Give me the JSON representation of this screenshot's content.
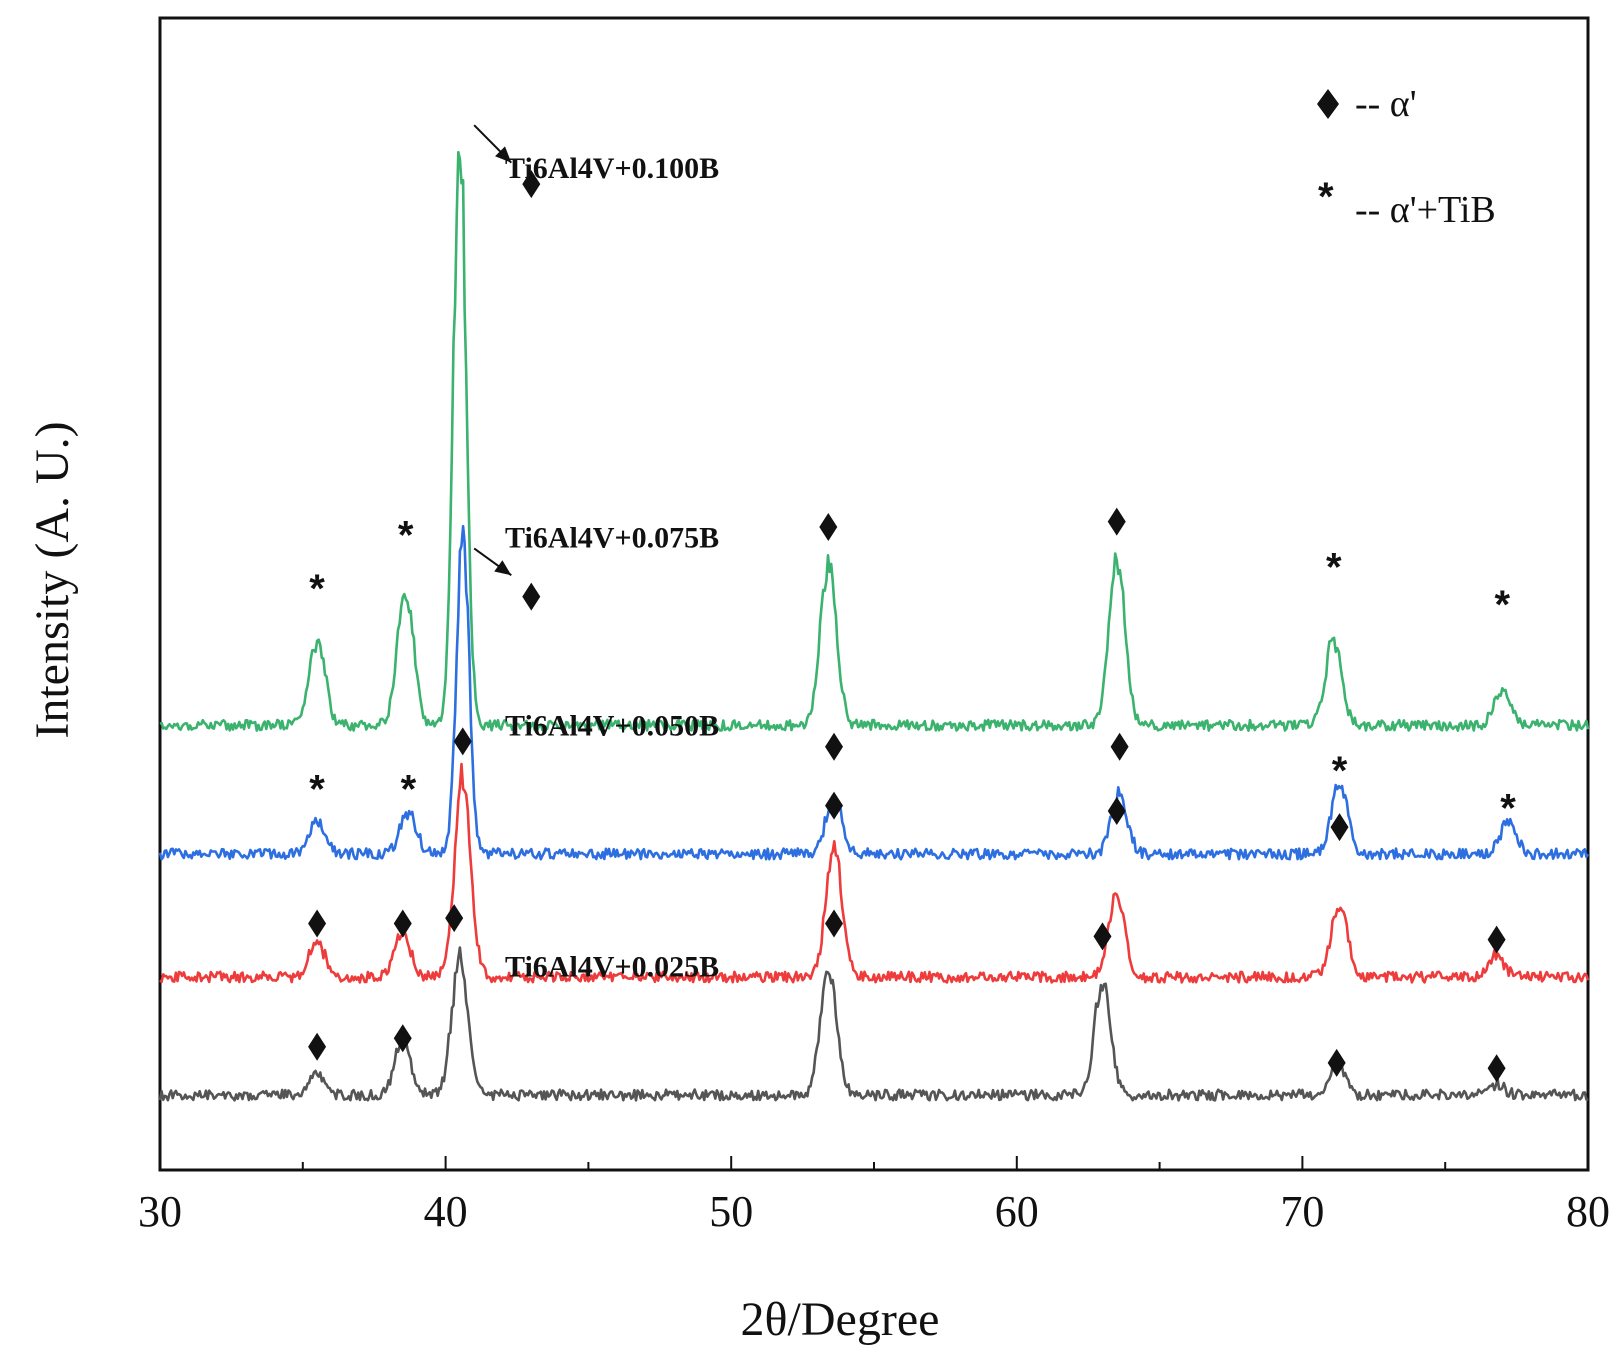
{
  "chart_data": {
    "type": "line",
    "title": "",
    "xlabel": "2θ/Degree",
    "ylabel": "Intensity (A. U.)",
    "xlim": [
      30,
      80
    ],
    "xticks": [
      30,
      40,
      50,
      60,
      70,
      80
    ],
    "yticks": [],
    "grid": false,
    "legend": {
      "placement": "top-right",
      "entries": [
        {
          "symbol": "diamond",
          "glyph": "",
          "text": "-- α'"
        },
        {
          "symbol": "star",
          "glyph": "*",
          "text": "-- α'+TiB"
        }
      ]
    },
    "series": [
      {
        "name": "Ti6Al4V+0.100B",
        "color": "#3bb26e",
        "baseline": 375,
        "peaks": [
          [
            35.5,
            80
          ],
          [
            38.6,
            130
          ],
          [
            40.5,
            560
          ],
          [
            53.4,
            150
          ],
          [
            63.5,
            155
          ],
          [
            71.1,
            80
          ],
          [
            77.0,
            35
          ]
        ],
        "markers": [
          {
            "x": 35.5,
            "y": 505,
            "symbol": "star"
          },
          {
            "x": 38.6,
            "y": 555,
            "symbol": "star"
          },
          {
            "x": 53.4,
            "y": 560,
            "symbol": "diamond"
          },
          {
            "x": 63.5,
            "y": 565,
            "symbol": "diamond"
          },
          {
            "x": 71.1,
            "y": 525,
            "symbol": "star"
          },
          {
            "x": 77.0,
            "y": 490,
            "symbol": "star"
          }
        ]
      },
      {
        "name": "Ti6Al4V+0.075B",
        "color": "#2d6fe0",
        "baseline": 255,
        "peaks": [
          [
            35.5,
            30
          ],
          [
            38.7,
            40
          ],
          [
            40.6,
            295
          ],
          [
            53.6,
            55
          ],
          [
            63.6,
            55
          ],
          [
            71.3,
            65
          ],
          [
            77.2,
            30
          ]
        ],
        "markers": [
          {
            "x": 35.5,
            "y": 318,
            "symbol": "star"
          },
          {
            "x": 38.7,
            "y": 318,
            "symbol": "star"
          },
          {
            "x": 53.6,
            "y": 355,
            "symbol": "diamond"
          },
          {
            "x": 63.6,
            "y": 355,
            "symbol": "diamond"
          },
          {
            "x": 71.3,
            "y": 335,
            "symbol": "star"
          },
          {
            "x": 77.2,
            "y": 300,
            "symbol": "star"
          }
        ]
      },
      {
        "name": "Ti6Al4V+0.050B",
        "color": "#ee3b3b",
        "baseline": 140,
        "peaks": [
          [
            35.5,
            32
          ],
          [
            38.5,
            40
          ],
          [
            40.6,
            185
          ],
          [
            53.6,
            120
          ],
          [
            63.5,
            75
          ],
          [
            71.3,
            70
          ],
          [
            76.8,
            20
          ]
        ],
        "markers": [
          {
            "x": 35.5,
            "y": 190,
            "symbol": "diamond"
          },
          {
            "x": 38.5,
            "y": 190,
            "symbol": "diamond"
          },
          {
            "x": 40.6,
            "y": 360,
            "symbol": "diamond"
          },
          {
            "x": 53.6,
            "y": 300,
            "symbol": "diamond"
          },
          {
            "x": 63.5,
            "y": 295,
            "symbol": "diamond"
          },
          {
            "x": 71.3,
            "y": 280,
            "symbol": "diamond"
          },
          {
            "x": 76.8,
            "y": 175,
            "symbol": "diamond"
          }
        ]
      },
      {
        "name": "Ti6Al4V+0.025B",
        "color": "#555555",
        "baseline": 30,
        "peaks": [
          [
            35.5,
            20
          ],
          [
            38.5,
            50
          ],
          [
            40.5,
            130
          ],
          [
            53.4,
            120
          ],
          [
            63.0,
            105
          ],
          [
            71.2,
            28
          ],
          [
            76.8,
            10
          ]
        ],
        "markers": [
          {
            "x": 35.5,
            "y": 75,
            "symbol": "diamond"
          },
          {
            "x": 38.5,
            "y": 83,
            "symbol": "diamond"
          },
          {
            "x": 40.3,
            "y": 195,
            "symbol": "diamond"
          },
          {
            "x": 53.6,
            "y": 190,
            "symbol": "diamond"
          },
          {
            "x": 63.0,
            "y": 178,
            "symbol": "diamond"
          },
          {
            "x": 71.2,
            "y": 60,
            "symbol": "diamond"
          },
          {
            "x": 76.8,
            "y": 55,
            "symbol": "diamond"
          }
        ]
      }
    ],
    "annotations": [
      {
        "type": "arrow-diamond",
        "series": "Ti6Al4V+0.100B",
        "x_from": 41.0,
        "y_from": 935,
        "x_to": 42.3,
        "y_to": 900,
        "marker_x": 43.0,
        "marker_y": 880
      },
      {
        "type": "arrow-diamond",
        "series": "Ti6Al4V+0.075B",
        "x_from": 41.0,
        "y_from": 540,
        "x_to": 42.3,
        "y_to": 515,
        "marker_x": 43.0,
        "marker_y": 495
      }
    ],
    "y_units_range": [
      -40,
      1035
    ]
  }
}
